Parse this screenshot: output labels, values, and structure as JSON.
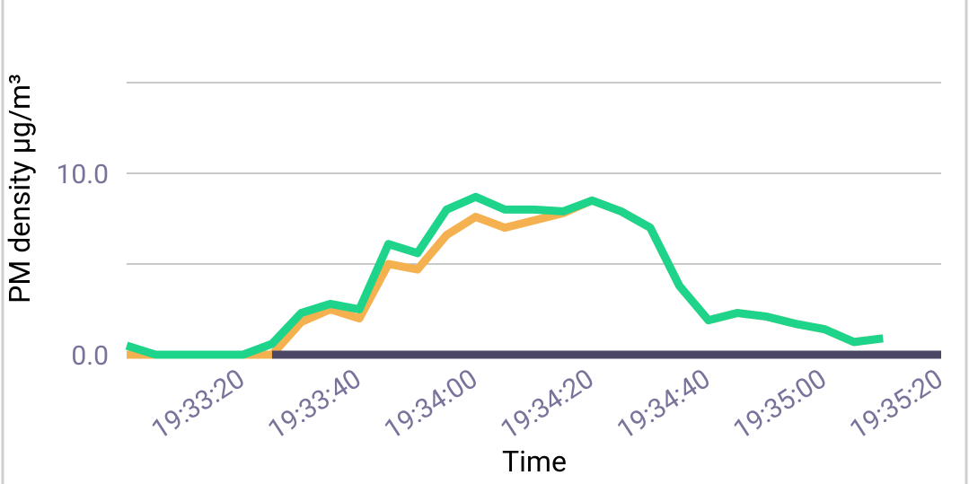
{
  "chart_data": {
    "type": "line",
    "ylabel": "PM density µg/m³",
    "xlabel": "Time",
    "x": [
      "19:33:00",
      "19:33:05",
      "19:33:10",
      "19:33:15",
      "19:33:20",
      "19:33:25",
      "19:33:30",
      "19:33:35",
      "19:33:40",
      "19:33:45",
      "19:33:50",
      "19:33:55",
      "19:34:00",
      "19:34:05",
      "19:34:10",
      "19:34:15",
      "19:34:20",
      "19:34:25",
      "19:34:30",
      "19:34:35",
      "19:34:40",
      "19:34:45",
      "19:34:50",
      "19:34:55",
      "19:35:00",
      "19:35:05",
      "19:35:10"
    ],
    "series": [
      {
        "color": "#f5b04f",
        "values": [
          0.0,
          0.0,
          0.0,
          0.0,
          0.0,
          0.0,
          1.8,
          2.5,
          2.0,
          5.0,
          4.7,
          6.6,
          7.6,
          7.0,
          7.4,
          7.8,
          8.5,
          7.9,
          7.0,
          3.8,
          1.9,
          2.3,
          2.1,
          1.7,
          1.4,
          0.7,
          0.9
        ]
      },
      {
        "color": "#1ed38a",
        "values": [
          0.5,
          0.0,
          0.0,
          0.0,
          0.0,
          0.6,
          2.3,
          2.8,
          2.5,
          6.1,
          5.6,
          8.0,
          8.7,
          8.0,
          8.0,
          7.9,
          8.5,
          7.9,
          7.0,
          3.8,
          1.9,
          2.3,
          2.1,
          1.7,
          1.4,
          0.7,
          0.9
        ]
      },
      {
        "color": "#4d4766",
        "x": [
          "19:33:25",
          "19:35:20"
        ],
        "values": [
          0.0,
          0.0
        ]
      }
    ],
    "xlim": [
      "19:33:00",
      "19:35:20"
    ],
    "xticks": [
      "19:33:20",
      "19:33:40",
      "19:34:00",
      "19:34:20",
      "19:34:40",
      "19:35:00",
      "19:35:20"
    ],
    "ylim": [
      0,
      17
    ],
    "yticks": [
      {
        "value": 0,
        "label": "0.0"
      },
      {
        "value": 5,
        "label": null
      },
      {
        "value": 10,
        "label": "10.0"
      },
      {
        "value": 15,
        "label": null
      }
    ],
    "grid": true
  }
}
